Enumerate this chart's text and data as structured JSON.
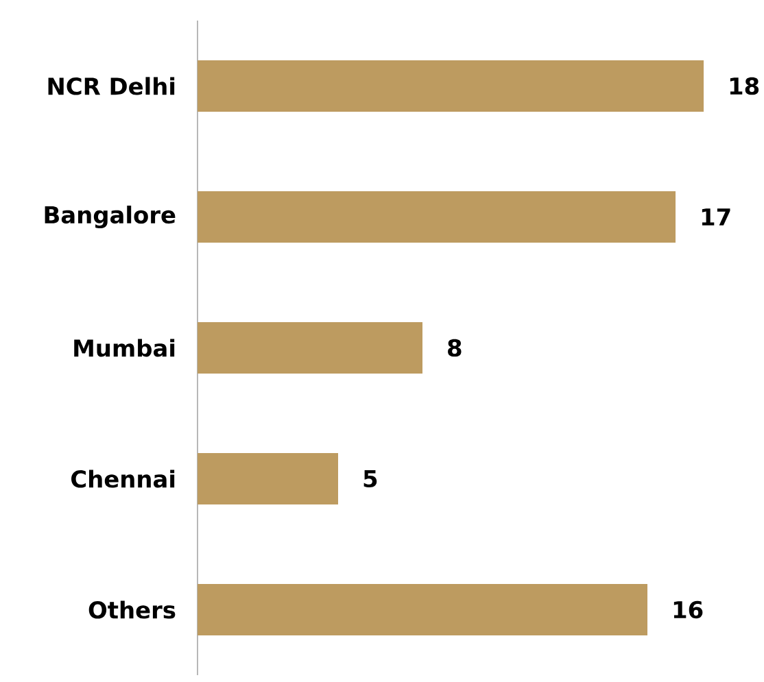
{
  "chart_data": {
    "type": "bar",
    "orientation": "horizontal",
    "categories": [
      "NCR Delhi",
      "Bangalore",
      "Mumbai",
      "Chennai",
      "Others"
    ],
    "values": [
      18,
      17,
      8,
      5,
      16
    ],
    "color": "#bd9b60",
    "data_labels": true
  }
}
